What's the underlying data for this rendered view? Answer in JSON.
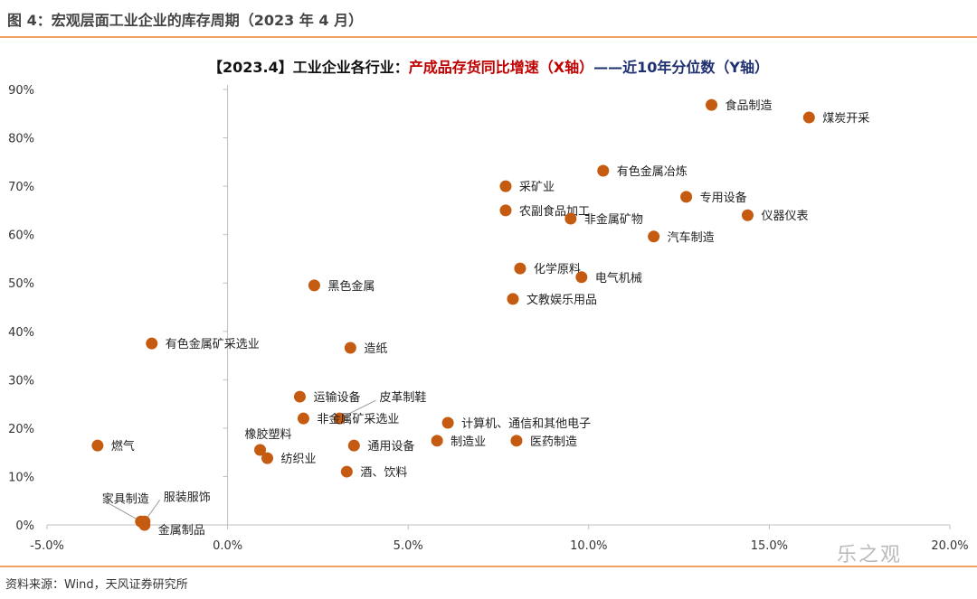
{
  "figure_title": "图 4：宏观层面工业企业的库存周期（2023 年 4 月）",
  "source": "资料来源：Wind，天风证券研究所",
  "watermark": "乐之观",
  "chart_data": {
    "type": "scatter",
    "title_parts": [
      "【2023.4】工业企业各行业：",
      "产成品存货同比增速（X轴）",
      "——近10年分位数（Y轴）"
    ],
    "title_colors": [
      "#111111",
      "#c00000",
      "#1f3070"
    ],
    "xlim": [
      -5,
      20
    ],
    "ylim": [
      0,
      90
    ],
    "x_ticks": [
      "-5.0%",
      "0.0%",
      "5.0%",
      "10.0%",
      "15.0%",
      "20.0%"
    ],
    "y_ticks": [
      "0%",
      "10%",
      "20%",
      "30%",
      "40%",
      "50%",
      "60%",
      "70%",
      "80%",
      "90%"
    ],
    "grid": false,
    "marker_color": "#c55a11",
    "points": [
      {
        "label": "食品制造",
        "x": 13.4,
        "y": 86.8
      },
      {
        "label": "煤炭开采",
        "x": 16.1,
        "y": 84.2
      },
      {
        "label": "有色金属冶炼",
        "x": 10.4,
        "y": 73.2
      },
      {
        "label": "采矿业",
        "x": 7.7,
        "y": 70.0
      },
      {
        "label": "专用设备",
        "x": 12.7,
        "y": 67.8
      },
      {
        "label": "农副食品加工",
        "x": 7.7,
        "y": 65.0
      },
      {
        "label": "非金属矿物",
        "x": 9.5,
        "y": 63.3
      },
      {
        "label": "仪器仪表",
        "x": 14.4,
        "y": 64.0
      },
      {
        "label": "汽车制造",
        "x": 11.8,
        "y": 59.6
      },
      {
        "label": "化学原料",
        "x": 8.1,
        "y": 53.0
      },
      {
        "label": "电气机械",
        "x": 9.8,
        "y": 51.2
      },
      {
        "label": "文教娱乐用品",
        "x": 7.9,
        "y": 46.7
      },
      {
        "label": "黑色金属",
        "x": 2.4,
        "y": 49.5
      },
      {
        "label": "有色金属矿采选业",
        "x": -2.1,
        "y": 37.5
      },
      {
        "label": "造纸",
        "x": 3.4,
        "y": 36.6
      },
      {
        "label": "运输设备",
        "x": 2.0,
        "y": 26.5
      },
      {
        "label": "皮革制鞋",
        "x": 3.1,
        "y": 22.0
      },
      {
        "label": "非金属矿采选业",
        "x": 2.1,
        "y": 22.0
      },
      {
        "label": "计算机、通信和其他电子",
        "x": 6.1,
        "y": 21.1
      },
      {
        "label": "制造业",
        "x": 5.8,
        "y": 17.4
      },
      {
        "label": "医药制造",
        "x": 8.0,
        "y": 17.4
      },
      {
        "label": "通用设备",
        "x": 3.5,
        "y": 16.4
      },
      {
        "label": "橡胶塑料",
        "x": 0.9,
        "y": 15.5
      },
      {
        "label": "纺织业",
        "x": 1.1,
        "y": 13.8
      },
      {
        "label": "酒、饮料",
        "x": 3.3,
        "y": 11.0
      },
      {
        "label": "燃气",
        "x": -3.6,
        "y": 16.4
      },
      {
        "label": "家具制造",
        "x": -2.4,
        "y": 0.7
      },
      {
        "label": "服装服饰",
        "x": -2.3,
        "y": 0.7
      },
      {
        "label": "金属制品",
        "x": -2.3,
        "y": 0.0
      }
    ]
  }
}
